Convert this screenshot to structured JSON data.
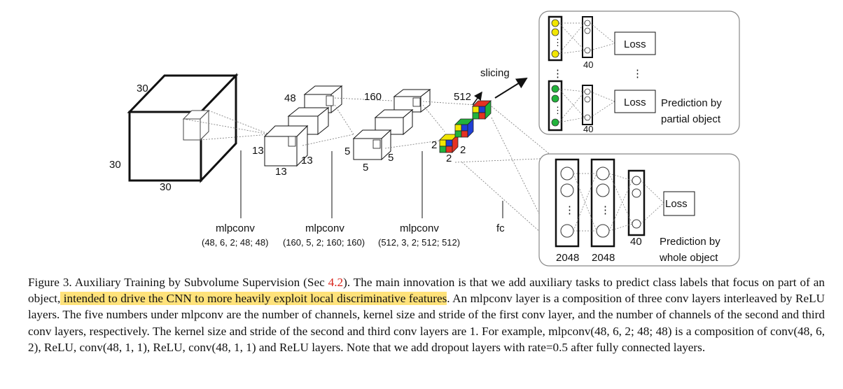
{
  "figure": {
    "labels": {
      "cube_top": "30",
      "cube_left": "30",
      "cube_bottom": "30",
      "b1_channels": "48",
      "b1_side": "13",
      "b1_bottom": "13",
      "b1_right": "13",
      "b2_channels": "160",
      "b2_side": "5",
      "b2_bottom": "5",
      "b2_right": "5",
      "b3_channels": "512",
      "b3_side": "2",
      "b3_right": "2",
      "b3_bottom": "2",
      "slicing": "slicing",
      "layer1_name": "mlpconv",
      "layer1_params": "(48, 6, 2; 48; 48)",
      "layer2_name": "mlpconv",
      "layer2_params": "(160, 5, 2; 160; 160)",
      "layer3_name": "mlpconv",
      "layer3_params": "(512, 3, 2; 512; 512)",
      "fc": "fc",
      "top_width_1": "40",
      "top_width_2": "40",
      "loss_1": "Loss",
      "loss_2": "Loss",
      "loss_3": "Loss",
      "partial_1": "Prediction by",
      "partial_2": "partial object",
      "whole_1": "Prediction by",
      "whole_2": "whole object",
      "fc_width_1": "2048",
      "fc_width_2": "2048",
      "fc_width_3": "40"
    }
  },
  "caption": {
    "lead": "Figure 3. Auxiliary Training by Subvolume Supervision (Sec ",
    "ref": "4.2",
    "mid": "). The main innovation is that we add auxiliary tasks to predict class labels that focus on part of an object,",
    "highlight": " intended to drive the CNN to more heavily exploit local discriminative features",
    "tail": ". An mlpconv layer is a composition of three conv layers interleaved by ReLU layers. The five numbers under mlpconv are the number of channels, kernel size and stride of the first conv layer, and the number of channels of the second and third conv layers, respectively. The kernel size and stride of the second and third conv layers are 1. For example, mlpconv(48, 6, 2; 48; 48) is a composition of conv(48, 6, 2), ReLU, conv(48, 1, 1), ReLU, conv(48, 1, 1) and ReLU layers. Note that we add dropout layers with rate=0.5 after fully connected layers."
  },
  "colors": {
    "yellow": "#f2e600",
    "green": "#21b33b",
    "blue": "#1f3fd6",
    "red": "#e53222",
    "highlight": "#ffe27a"
  }
}
